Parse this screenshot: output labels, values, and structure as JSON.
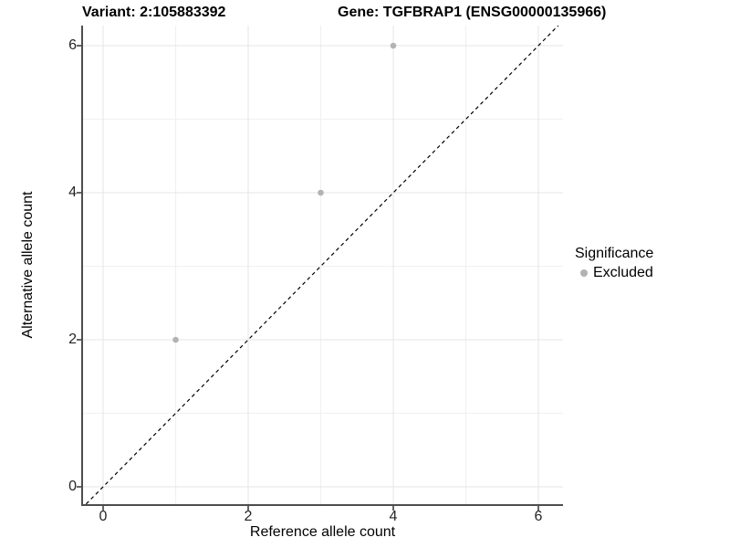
{
  "chart_data": {
    "type": "scatter",
    "titles": {
      "left": "Variant: 2:105883392",
      "right": "Gene: TGFBRAP1 (ENSG00000135966)"
    },
    "xlabel": "Reference allele count",
    "ylabel": "Alternative allele count",
    "xlim": [
      -0.3,
      6.3
    ],
    "ylim": [
      -0.3,
      6.3
    ],
    "x_ticks": {
      "values": [
        0,
        2,
        4,
        6
      ],
      "labels": [
        "0",
        "2",
        "4",
        "6"
      ]
    },
    "y_ticks": {
      "values": [
        0,
        2,
        4,
        6
      ],
      "labels": [
        "0",
        "2",
        "4",
        "6"
      ]
    },
    "grid": {
      "major": [
        0,
        2,
        4,
        6
      ],
      "minor": [
        1,
        3,
        5
      ],
      "shown": true
    },
    "series": [
      {
        "name": "Excluded",
        "color": "#b3b3b3",
        "points": [
          [
            1,
            2
          ],
          [
            3,
            4
          ],
          [
            4,
            6
          ]
        ]
      }
    ],
    "reference_line": {
      "equation": "y = x",
      "style": "dashed",
      "color": "#000000"
    },
    "legend": {
      "title": "Significance",
      "position": "right",
      "entries": [
        {
          "label": "Excluded",
          "color": "#b3b3b3"
        }
      ]
    },
    "colors": {
      "background": "#ffffff",
      "grid_major": "#e5e5e5",
      "grid_minor": "#f0f0f0",
      "axis_line": "#4d4d4d",
      "tick_mark": "#333333",
      "tick_text": "#262626",
      "point": "#b3b3b3"
    }
  }
}
